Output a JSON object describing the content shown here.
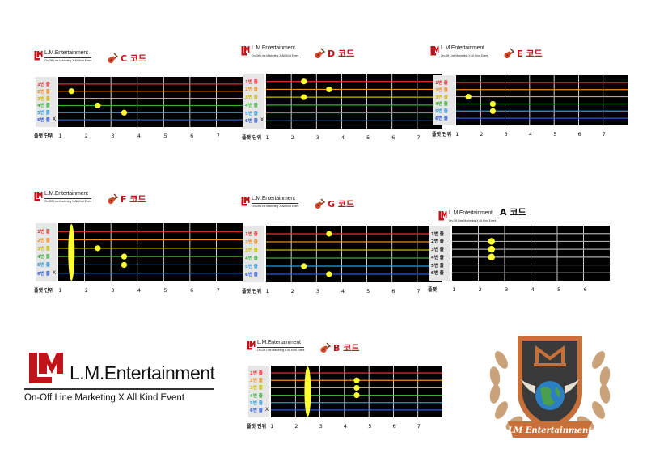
{
  "brand": {
    "name": "L.M.Entertainment",
    "tagline": "On-Off Line Marketing  X  All Kind Event",
    "emblem_text": "LM Entertainment"
  },
  "colors": {
    "accent_red": "#c0141a",
    "fretboard": "#000000",
    "dot": "#ffff33",
    "string_colors": [
      "#e83030",
      "#f08a18",
      "#c8b800",
      "#38b038",
      "#2a9ad8",
      "#2a5ad8"
    ]
  },
  "charts": [
    {
      "id": "c",
      "title": "C 코드",
      "strings": [
        "1번 줄",
        "2번 줄",
        "3번 줄",
        "4번 줄",
        "5번 줄",
        "6번 줄"
      ],
      "muted": "X",
      "unit_label": "플랫 단위",
      "frets": [
        "1",
        "2",
        "3",
        "4",
        "5",
        "6",
        "7"
      ],
      "dots": [
        {
          "string": 2,
          "fret": 1
        },
        {
          "string": 4,
          "fret": 2
        },
        {
          "string": 5,
          "fret": 3
        }
      ],
      "barre": null
    },
    {
      "id": "d",
      "title": "D 코드",
      "strings": [
        "1번 줄",
        "2번 줄",
        "3번 줄",
        "4번 줄",
        "5번 줄",
        "6번 줄"
      ],
      "muted": "X",
      "unit_label": "플랫 단위",
      "frets": [
        "1",
        "2",
        "3",
        "4",
        "5",
        "6",
        "7"
      ],
      "dots": [
        {
          "string": 1,
          "fret": 2
        },
        {
          "string": 2,
          "fret": 3
        },
        {
          "string": 3,
          "fret": 2
        }
      ],
      "barre": null
    },
    {
      "id": "e",
      "title": "E 코드",
      "strings": [
        "1번 줄",
        "2번 줄",
        "3번 줄",
        "4번 줄",
        "5번 줄",
        "6번 줄"
      ],
      "muted": "",
      "unit_label": "플랫 단위",
      "frets": [
        "1",
        "2",
        "3",
        "4",
        "5",
        "6",
        "7"
      ],
      "dots": [
        {
          "string": 3,
          "fret": 1
        },
        {
          "string": 4,
          "fret": 2
        },
        {
          "string": 5,
          "fret": 2
        }
      ],
      "barre": null
    },
    {
      "id": "f",
      "title": "F 코드",
      "strings": [
        "1번 줄",
        "2번 줄",
        "3번 줄",
        "4번 줄",
        "5번 줄",
        "6번 줄"
      ],
      "muted": "X",
      "unit_label": "플랫 단위",
      "frets": [
        "1",
        "2",
        "3",
        "4",
        "5",
        "6",
        "7"
      ],
      "dots": [
        {
          "string": 3,
          "fret": 2
        },
        {
          "string": 4,
          "fret": 3
        },
        {
          "string": 5,
          "fret": 3
        }
      ],
      "barre": {
        "fret": 1
      }
    },
    {
      "id": "g",
      "title": "G 코드",
      "strings": [
        "1번 줄",
        "2번 줄",
        "3번 줄",
        "4번 줄",
        "5번 줄",
        "6번 줄"
      ],
      "muted": "",
      "unit_label": "플랫 단위",
      "frets": [
        "1",
        "2",
        "3",
        "4",
        "5",
        "6",
        "7"
      ],
      "dots": [
        {
          "string": 1,
          "fret": 3
        },
        {
          "string": 5,
          "fret": 2
        },
        {
          "string": 6,
          "fret": 3
        }
      ],
      "barre": null
    },
    {
      "id": "a",
      "title": "A 코드",
      "strings": [
        "1번 줄",
        "2번 줄",
        "3번 줄",
        "4번 줄",
        "5번 줄",
        "6번 줄"
      ],
      "muted": "",
      "unit_label": "플랫",
      "frets": [
        "1",
        "2",
        "3",
        "4",
        "5",
        "6"
      ],
      "dots": [
        {
          "string": 2,
          "fret": 2
        },
        {
          "string": 3,
          "fret": 2
        },
        {
          "string": 4,
          "fret": 2
        }
      ],
      "barre": null
    },
    {
      "id": "b",
      "title": "B 코드",
      "strings": [
        "1번 줄",
        "2번 줄",
        "3번 줄",
        "4번 줄",
        "5번 줄",
        "6번 줄"
      ],
      "muted": "X",
      "unit_label": "플랫 단위",
      "frets": [
        "1",
        "2",
        "3",
        "4",
        "5",
        "6",
        "7"
      ],
      "dots": [
        {
          "string": 2,
          "fret": 4
        },
        {
          "string": 3,
          "fret": 4
        },
        {
          "string": 4,
          "fret": 4
        }
      ],
      "barre": {
        "fret": 2
      }
    }
  ]
}
